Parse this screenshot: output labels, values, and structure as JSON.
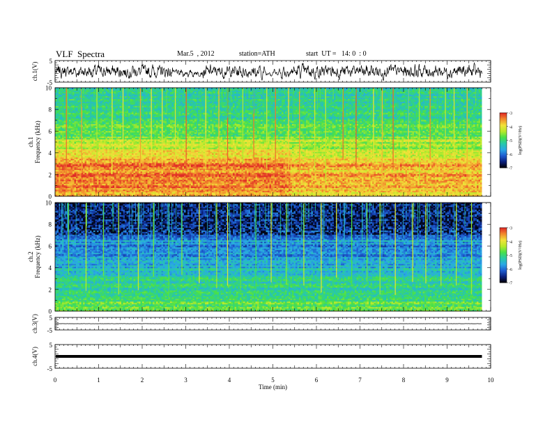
{
  "header": {
    "title": "VLF  Spectra",
    "date": "Mar.5  , 2012",
    "station": "station=ATH",
    "start": "start  UT =   14: 0  : 0"
  },
  "colors": {
    "colormap": [
      "#000000",
      "#0a1f7a",
      "#1e5bd0",
      "#2aa8e6",
      "#27c9a8",
      "#47e04a",
      "#b8ea2a",
      "#f2e23a",
      "#f28a2c",
      "#e02a26",
      "#ffffff"
    ],
    "trace": "#000000",
    "frame": "#000000"
  },
  "chart_data": [
    {
      "type": "line",
      "panel": "ch1-waveform",
      "ylabel": "ch.1(V)",
      "ylim": [
        -5,
        5
      ],
      "yticks": [
        "5",
        "-5"
      ],
      "x_range": [
        0,
        9.8
      ],
      "description_of_series": "noise-like waveform, amplitude about ±3 V, quieter near 3.0 and 5.0 min"
    },
    {
      "type": "heatmap",
      "panel": "ch1-spectrogram",
      "ylabel": "ch.1",
      "ylabel2": "Frequency  (kHz)",
      "ylim": [
        0,
        10
      ],
      "yticks": [
        "0",
        "2",
        "4",
        "6",
        "8",
        "10"
      ],
      "x_range": [
        0,
        9.8
      ],
      "colorbar": {
        "label": "log(PSD)(V²/Hz)",
        "ticks": [
          "-3",
          "-4",
          "-5",
          "-6",
          "-7"
        ],
        "range": [
          -7,
          -3
        ]
      },
      "bands_khz_level": [
        [
          0.0,
          -3.8
        ],
        [
          0.5,
          -3.6
        ],
        [
          1.0,
          -3.4
        ],
        [
          1.6,
          -3.3
        ],
        [
          2.0,
          -3.4
        ],
        [
          2.5,
          -3.5
        ],
        [
          3.0,
          -3.3
        ],
        [
          3.5,
          -3.7
        ],
        [
          4.0,
          -4.0
        ],
        [
          4.5,
          -4.2
        ],
        [
          5.0,
          -4.3
        ],
        [
          5.5,
          -4.6
        ],
        [
          6.0,
          -4.9
        ],
        [
          6.5,
          -4.5
        ],
        [
          7.0,
          -5.0
        ],
        [
          7.5,
          -5.1
        ],
        [
          8.0,
          -5.1
        ],
        [
          9.0,
          -5.2
        ],
        [
          10.0,
          -5.2
        ]
      ],
      "spike_times_min": [
        0.25,
        0.6,
        0.95,
        1.3,
        1.55,
        1.95,
        2.2,
        2.45,
        2.75,
        3.0,
        3.45,
        3.75,
        3.95,
        4.3,
        4.55,
        4.85,
        5.05,
        5.35,
        5.6,
        5.95,
        6.2,
        6.6,
        6.9,
        7.3,
        7.5,
        7.75,
        8.1,
        8.35,
        8.6,
        8.95,
        9.15,
        9.45
      ],
      "level_shift_at_min": 5.4
    },
    {
      "type": "heatmap",
      "panel": "ch2-spectrogram",
      "ylabel": "ch.2",
      "ylabel2": "Frequency  (kHz)",
      "ylim": [
        0,
        10
      ],
      "yticks": [
        "0",
        "2",
        "4",
        "6",
        "8",
        "10"
      ],
      "x_range": [
        0,
        9.8
      ],
      "colorbar": {
        "label": "log(PSD)(V²/Hz)",
        "ticks": [
          "-3",
          "-4",
          "-5",
          "-6",
          "-7"
        ],
        "range": [
          -7,
          -3
        ]
      },
      "bands_khz_level": [
        [
          0.0,
          -4.8
        ],
        [
          0.5,
          -4.7
        ],
        [
          1.0,
          -4.9
        ],
        [
          1.5,
          -5.0
        ],
        [
          2.0,
          -5.1
        ],
        [
          3.0,
          -5.2
        ],
        [
          4.0,
          -5.5
        ],
        [
          5.0,
          -5.7
        ],
        [
          6.0,
          -5.9
        ],
        [
          6.5,
          -5.6
        ],
        [
          7.0,
          -6.1
        ],
        [
          8.0,
          -6.3
        ],
        [
          9.0,
          -6.4
        ],
        [
          10.0,
          -6.4
        ]
      ],
      "spike_times_min": [
        0.3,
        0.7,
        1.1,
        1.45,
        1.9,
        2.25,
        2.6,
        2.9,
        3.3,
        3.7,
        3.95,
        4.25,
        4.6,
        4.95,
        5.3,
        5.7,
        6.1,
        6.45,
        6.8,
        7.15,
        7.45,
        7.8,
        8.2,
        8.5,
        8.85,
        9.2,
        9.55
      ]
    },
    {
      "type": "line",
      "panel": "ch3-waveform",
      "ylabel": "ch.3(V)",
      "ylim": [
        -5,
        5
      ],
      "yticks": [
        "5",
        "-5"
      ],
      "x_range": [
        0,
        9.8
      ],
      "description_of_series": "flat line near 0 V"
    },
    {
      "type": "line",
      "panel": "ch4-waveform",
      "ylabel": "ch.4(V)",
      "ylim": [
        -5,
        5
      ],
      "yticks": [
        "5",
        "-5"
      ],
      "x_range": [
        0,
        9.8
      ],
      "description_of_series": "thick flat band near 0 V"
    }
  ],
  "xaxis": {
    "label": "Time  (min)",
    "range": [
      0,
      10
    ],
    "ticks": [
      "0",
      "1",
      "2",
      "3",
      "4",
      "5",
      "6",
      "7",
      "8",
      "9",
      "10"
    ]
  }
}
